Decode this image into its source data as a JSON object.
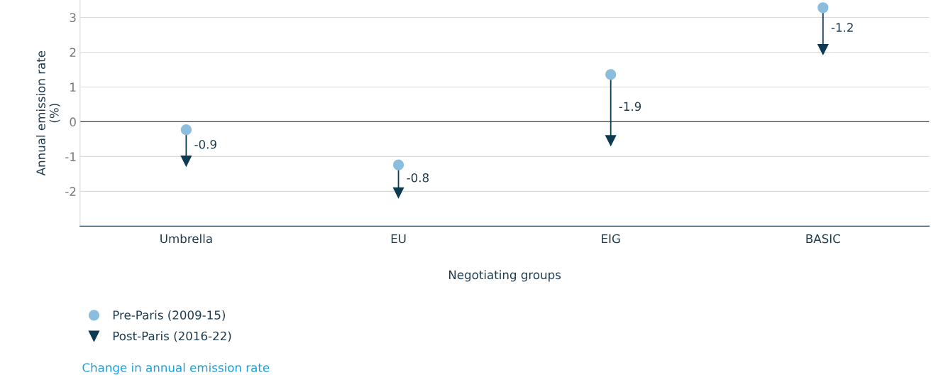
{
  "chart_data": {
    "type": "scatter",
    "xlabel": "Negotiating groups",
    "ylabel": "Annual emission rate\n(%)",
    "categories": [
      "Umbrella",
      "EU",
      "EIG",
      "BASIC"
    ],
    "series": [
      {
        "name": "Pre-Paris (2009-15)",
        "type": "scatter",
        "color": "#8bbddf",
        "values": [
          -0.23,
          -1.24,
          1.36,
          3.28
        ]
      },
      {
        "name": "Post-Paris (2016-22)",
        "color": "#0d3b52",
        "marker": "triangle",
        "values": [
          -1.13,
          -2.04,
          -0.54,
          2.08
        ]
      }
    ],
    "annotations": [
      "-0.9",
      "-0.8",
      "-1.9",
      "-1.2",
      "Change in annual emission rate"
    ],
    "ylim": [
      -3,
      3.5
    ],
    "yticks": [
      {
        "value": -2,
        "label": "-2"
      },
      {
        "value": -1,
        "label": "-1"
      },
      0,
      1,
      2,
      3
    ],
    "ref_lines": [
      {
        "axis": "y",
        "value": 0,
        "color": "#2b4a5c"
      }
    ],
    "grid": "y",
    "legend": "bottom left",
    "marker": "circle"
  }
}
